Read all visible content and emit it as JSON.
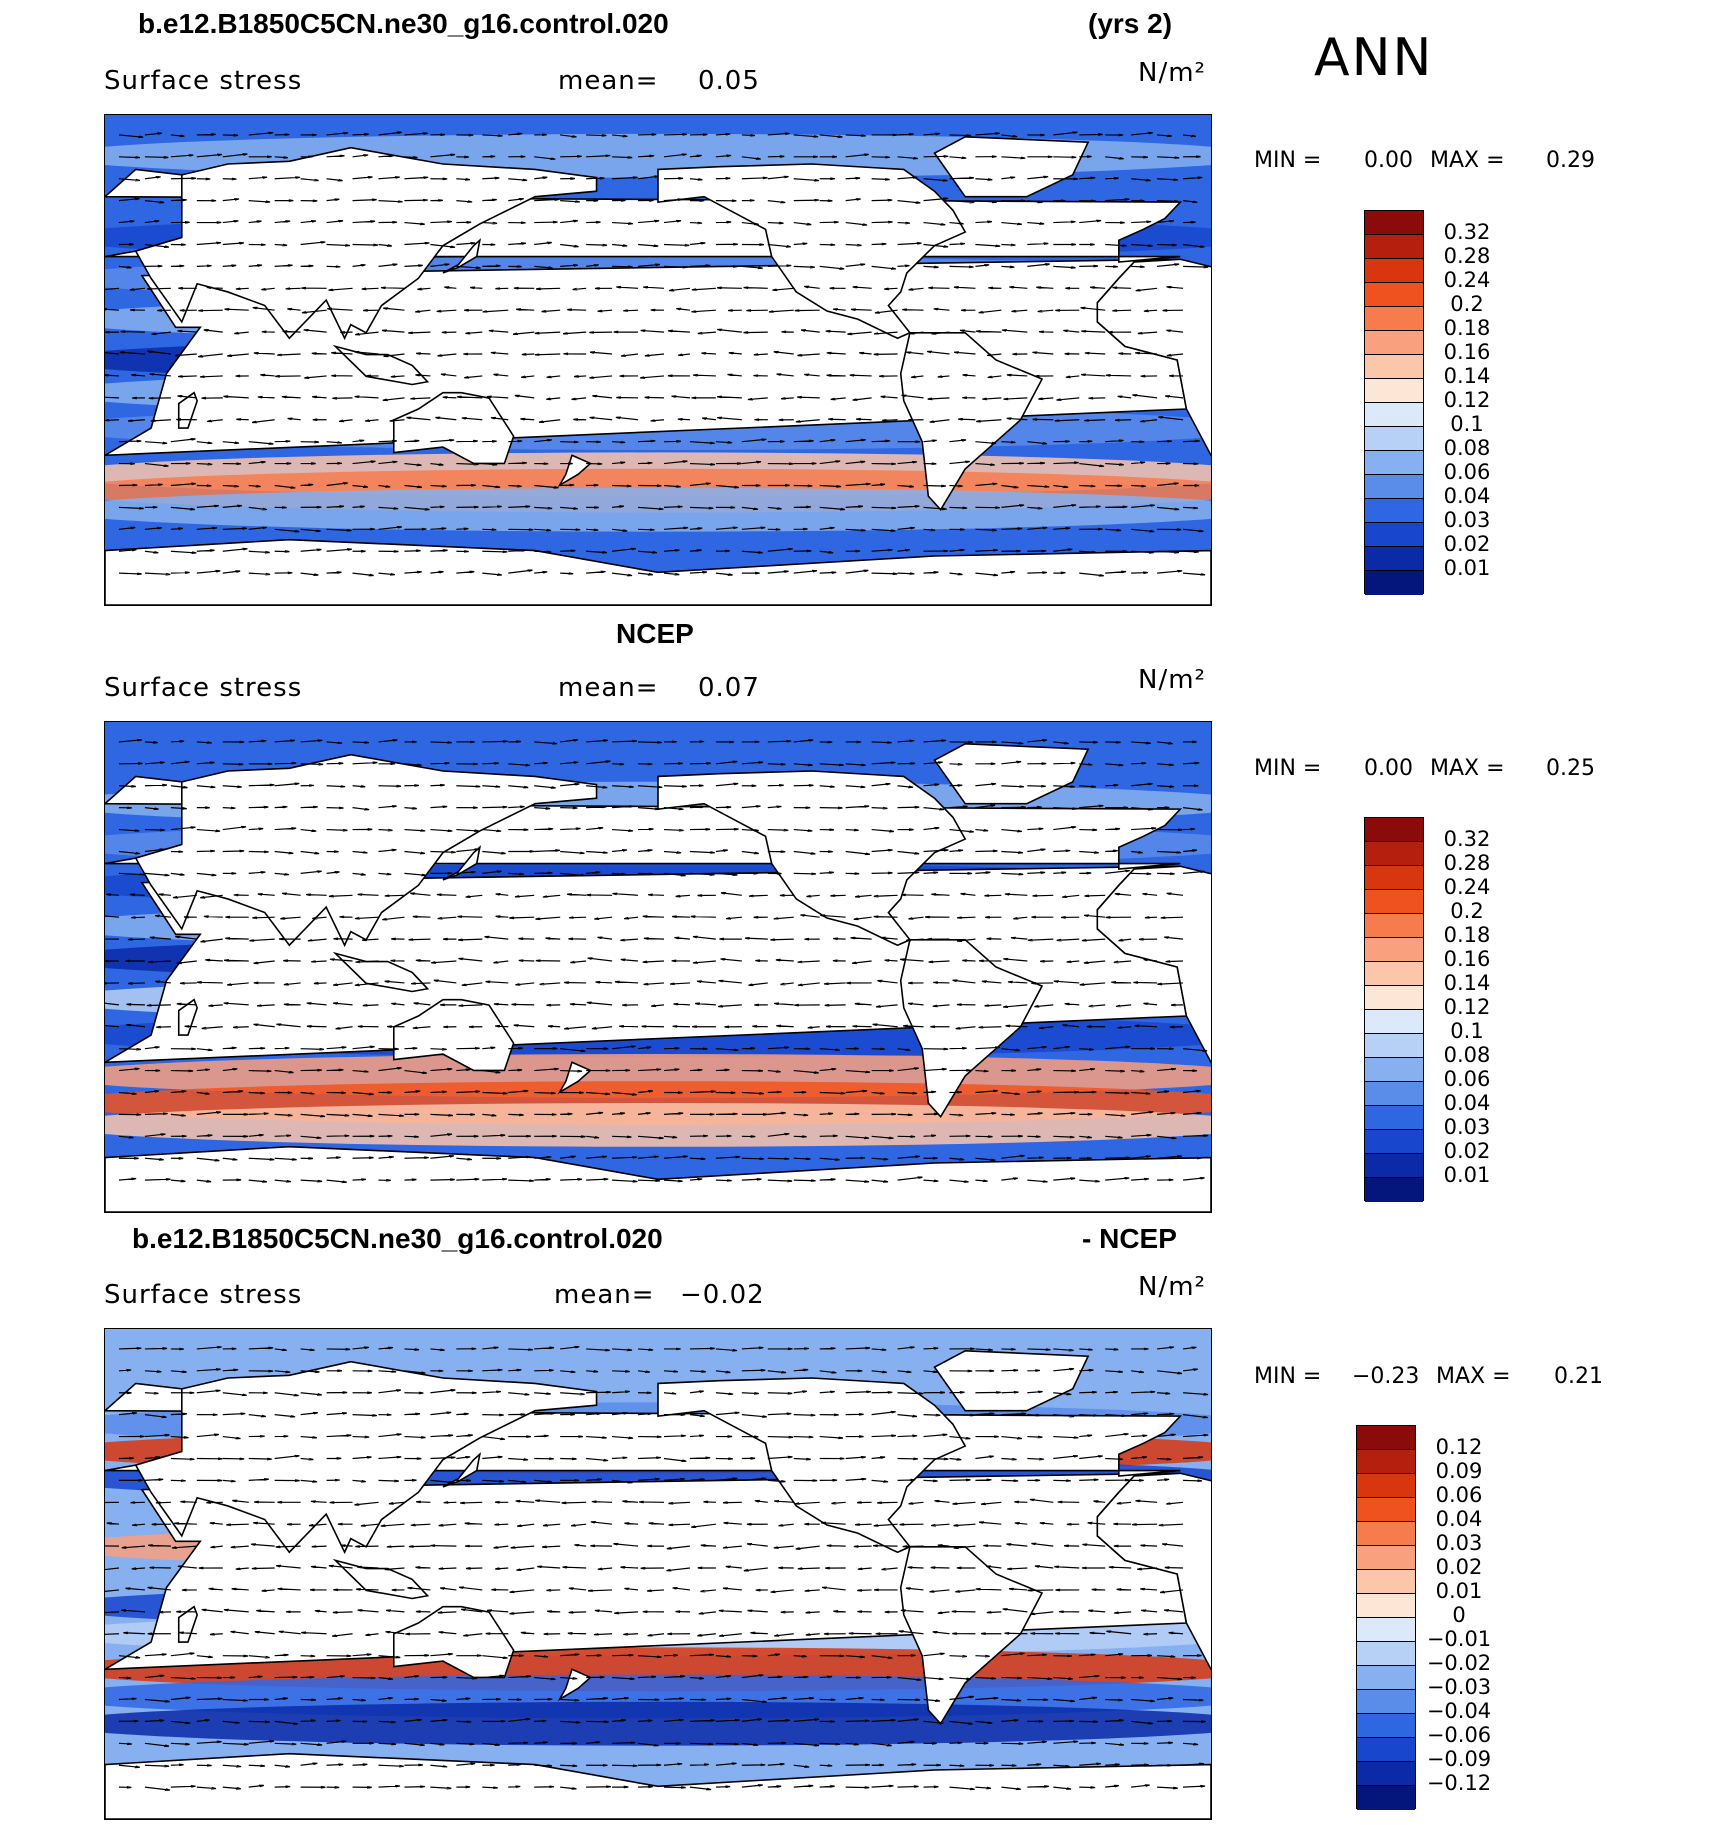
{
  "season": "ANN",
  "panels": [
    {
      "title_left": "b.e12.B1850C5CN.ne30_g16.control.020",
      "title_right": "(yrs 2)",
      "variable": "Surface stress",
      "mean_label": "mean=",
      "mean_value": "0.05",
      "units": "N/m²",
      "min_label": "MIN =",
      "min_value": "0.00",
      "max_label": "MAX =",
      "max_value": "0.29",
      "levels": [
        "0.32",
        "0.28",
        "0.24",
        "0.2",
        "0.18",
        "0.16",
        "0.14",
        "0.12",
        "0.1",
        "0.08",
        "0.06",
        "0.04",
        "0.03",
        "0.02",
        "0.01"
      ],
      "colors": [
        "#8b0a0a",
        "#b5200e",
        "#d8360f",
        "#f0521f",
        "#f67c4e",
        "#f9a07e",
        "#fcc6ab",
        "#fde6d6",
        "#dbe9fb",
        "#b7d0f6",
        "#86b0ef",
        "#5a8cea",
        "#2f67e3",
        "#1846cd",
        "#0b2aa8",
        "#04157c"
      ]
    },
    {
      "title_left": "NCEP",
      "variable": "Surface stress",
      "mean_label": "mean=",
      "mean_value": "0.07",
      "units": "N/m²",
      "min_label": "MIN =",
      "min_value": "0.00",
      "max_label": "MAX =",
      "max_value": "0.25",
      "levels": [
        "0.32",
        "0.28",
        "0.24",
        "0.2",
        "0.18",
        "0.16",
        "0.14",
        "0.12",
        "0.1",
        "0.08",
        "0.06",
        "0.04",
        "0.03",
        "0.02",
        "0.01"
      ],
      "colors": [
        "#8b0a0a",
        "#b5200e",
        "#d8360f",
        "#f0521f",
        "#f67c4e",
        "#f9a07e",
        "#fcc6ab",
        "#fde6d6",
        "#dbe9fb",
        "#b7d0f6",
        "#86b0ef",
        "#5a8cea",
        "#2f67e3",
        "#1846cd",
        "#0b2aa8",
        "#04157c"
      ]
    },
    {
      "title_left": "b.e12.B1850C5CN.ne30_g16.control.020",
      "title_right": "- NCEP",
      "variable": "Surface stress",
      "mean_label": "mean=",
      "mean_value": "−0.02",
      "units": "N/m²",
      "min_label": "MIN =",
      "min_value": "−0.23",
      "max_label": "MAX =",
      "max_value": "0.21",
      "levels": [
        "0.12",
        "0.09",
        "0.06",
        "0.04",
        "0.03",
        "0.02",
        "0.01",
        "0",
        "−0.01",
        "−0.02",
        "−0.03",
        "−0.04",
        "−0.06",
        "−0.09",
        "−0.12"
      ],
      "colors": [
        "#8b0a0a",
        "#b5200e",
        "#d8360f",
        "#f0521f",
        "#f67c4e",
        "#f9a07e",
        "#fcc6ab",
        "#fde6d6",
        "#dbe9fb",
        "#b7d0f6",
        "#86b0ef",
        "#5a8cea",
        "#2f67e3",
        "#1846cd",
        "#0b2aa8",
        "#04157c"
      ]
    }
  ]
}
